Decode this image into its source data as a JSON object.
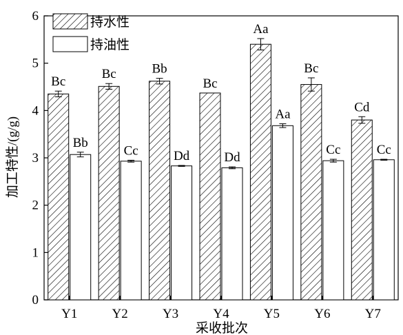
{
  "chart_data": {
    "type": "bar",
    "xlabel": "采收批次",
    "ylabel": "加工特性/(g/g)",
    "categories": [
      "Y1",
      "Y2",
      "Y3",
      "Y4",
      "Y5",
      "Y6",
      "Y7"
    ],
    "ylim": [
      0,
      6
    ],
    "yticks": [
      "0",
      "1",
      "2",
      "3",
      "4",
      "5",
      "6"
    ],
    "grid": false,
    "legend_position": "top-left",
    "series": [
      {
        "name": "持水性",
        "pattern": "diagonal-hatch",
        "values": [
          4.35,
          4.51,
          4.62,
          4.37,
          5.4,
          4.55,
          3.8
        ],
        "errors": [
          0.06,
          0.06,
          0.06,
          0.0,
          0.12,
          0.14,
          0.07
        ],
        "labels": [
          "Bc",
          "Bc",
          "Bb",
          "Bc",
          "Aa",
          "Bc",
          "Cd"
        ]
      },
      {
        "name": "持油性",
        "pattern": "solid-white",
        "values": [
          3.07,
          2.93,
          2.83,
          2.79,
          3.68,
          2.94,
          2.96
        ],
        "errors": [
          0.05,
          0.02,
          0.01,
          0.02,
          0.04,
          0.03,
          0.01
        ],
        "labels": [
          "Bb",
          "Cc",
          "Dd",
          "Dd",
          "Aa",
          "Cc",
          "Cc"
        ]
      }
    ],
    "colors": {
      "bar_stroke": "#000000",
      "hatch": "#000000",
      "fill": "#ffffff"
    }
  }
}
